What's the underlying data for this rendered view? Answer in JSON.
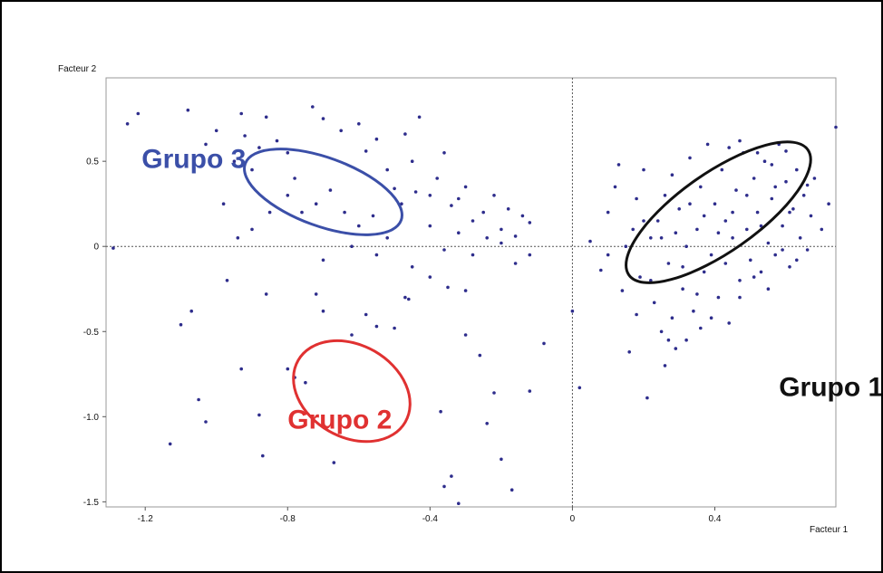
{
  "chart_data": {
    "type": "scatter",
    "title": "",
    "xlabel": "Facteur 1",
    "ylabel": "Facteur 2",
    "xlim": [
      -1.31,
      0.74
    ],
    "ylim": [
      -1.53,
      0.99
    ],
    "x_ticks": [
      -1.2,
      -0.8,
      -0.4,
      0,
      0.4
    ],
    "x_tick_labels": [
      "-1.2",
      "-0.8",
      "-0.4",
      "0",
      "0.4"
    ],
    "y_ticks": [
      0.5,
      0,
      -0.5,
      -1.0,
      -1.5
    ],
    "y_tick_labels": [
      "0.5",
      "0",
      "-0.5",
      "-1.0",
      "-1.5"
    ],
    "grid": false,
    "reference_lines": {
      "x": 0,
      "y": 0,
      "style": "dotted"
    },
    "point_color": "#2e2d8c",
    "groups": [
      {
        "label": "Grupo 1",
        "color": "#111111",
        "center": [
          0.41,
          0.2
        ],
        "radii": [
          0.83,
          0.3
        ],
        "angle_deg": 35,
        "label_pos": [
          0.58,
          -0.88
        ]
      },
      {
        "label": "Grupo 2",
        "color": "#e03131",
        "center": [
          -0.62,
          -0.85
        ],
        "radii": [
          0.47,
          0.35
        ],
        "angle_deg": -30,
        "label_pos": [
          -0.8,
          -1.07
        ]
      },
      {
        "label": "Grupo 3",
        "color": "#3b4fa8",
        "center": [
          -0.7,
          0.32
        ],
        "radii": [
          0.63,
          0.26
        ],
        "angle_deg": -20,
        "label_pos": [
          -1.21,
          0.46
        ]
      }
    ],
    "points": [
      [
        -1.29,
        -0.01
      ],
      [
        -1.25,
        0.72
      ],
      [
        -1.22,
        0.78
      ],
      [
        -1.08,
        0.8
      ],
      [
        -1.03,
        0.6
      ],
      [
        -1.0,
        0.68
      ],
      [
        -0.95,
        0.5
      ],
      [
        -0.93,
        0.78
      ],
      [
        -0.92,
        0.65
      ],
      [
        -0.9,
        0.45
      ],
      [
        -0.88,
        0.58
      ],
      [
        -0.86,
        0.76
      ],
      [
        -0.83,
        0.62
      ],
      [
        -0.8,
        0.55
      ],
      [
        -0.78,
        0.4
      ],
      [
        -0.73,
        0.82
      ],
      [
        -0.7,
        0.75
      ],
      [
        -0.65,
        0.68
      ],
      [
        -0.6,
        0.72
      ],
      [
        -0.58,
        0.56
      ],
      [
        -0.55,
        0.63
      ],
      [
        -0.52,
        0.45
      ],
      [
        -0.5,
        0.34
      ],
      [
        -0.47,
        0.66
      ],
      [
        -0.45,
        0.5
      ],
      [
        -0.43,
        0.76
      ],
      [
        -0.4,
        0.3
      ],
      [
        -0.38,
        0.4
      ],
      [
        -0.36,
        0.55
      ],
      [
        -0.34,
        0.24
      ],
      [
        -0.32,
        0.28
      ],
      [
        -0.3,
        0.35
      ],
      [
        -0.28,
        0.15
      ],
      [
        -0.25,
        0.2
      ],
      [
        -0.22,
        0.3
      ],
      [
        -0.2,
        0.1
      ],
      [
        -0.18,
        0.22
      ],
      [
        -0.16,
        0.06
      ],
      [
        -0.14,
        0.18
      ],
      [
        -0.12,
        0.14
      ],
      [
        -0.98,
        0.25
      ],
      [
        -0.94,
        0.05
      ],
      [
        -0.9,
        0.1
      ],
      [
        -0.85,
        0.2
      ],
      [
        -0.8,
        0.3
      ],
      [
        -0.76,
        0.2
      ],
      [
        -0.72,
        0.25
      ],
      [
        -0.68,
        0.33
      ],
      [
        -0.64,
        0.2
      ],
      [
        -0.6,
        0.12
      ],
      [
        -0.56,
        0.18
      ],
      [
        -0.52,
        0.05
      ],
      [
        -0.48,
        0.25
      ],
      [
        -0.44,
        0.32
      ],
      [
        -0.4,
        0.12
      ],
      [
        -0.36,
        -0.02
      ],
      [
        -0.32,
        0.08
      ],
      [
        -0.28,
        -0.05
      ],
      [
        -0.24,
        0.05
      ],
      [
        -0.2,
        0.02
      ],
      [
        -0.16,
        -0.1
      ],
      [
        -0.12,
        -0.05
      ],
      [
        -0.55,
        -0.05
      ],
      [
        -0.62,
        0.0
      ],
      [
        -0.7,
        -0.08
      ],
      [
        -0.45,
        -0.12
      ],
      [
        -0.4,
        -0.18
      ],
      [
        -0.35,
        -0.24
      ],
      [
        -0.3,
        -0.26
      ],
      [
        -0.47,
        -0.3
      ],
      [
        -1.13,
        -1.16
      ],
      [
        -1.1,
        -0.46
      ],
      [
        -1.07,
        -0.38
      ],
      [
        -1.05,
        -0.9
      ],
      [
        -1.03,
        -1.03
      ],
      [
        -0.97,
        -0.2
      ],
      [
        -0.93,
        -0.72
      ],
      [
        -0.88,
        -0.99
      ],
      [
        -0.87,
        -1.23
      ],
      [
        -0.86,
        -0.28
      ],
      [
        -0.8,
        -0.72
      ],
      [
        -0.78,
        -0.77
      ],
      [
        -0.75,
        -0.8
      ],
      [
        -0.72,
        -0.28
      ],
      [
        -0.7,
        -0.38
      ],
      [
        -0.67,
        -1.27
      ],
      [
        -0.62,
        -0.52
      ],
      [
        -0.58,
        -0.4
      ],
      [
        -0.55,
        -0.47
      ],
      [
        -0.5,
        -0.48
      ],
      [
        -0.46,
        -0.31
      ],
      [
        -0.37,
        -0.97
      ],
      [
        -0.36,
        -1.41
      ],
      [
        -0.34,
        -1.35
      ],
      [
        -0.32,
        -1.51
      ],
      [
        -0.3,
        -0.52
      ],
      [
        -0.26,
        -0.64
      ],
      [
        -0.24,
        -1.04
      ],
      [
        -0.22,
        -0.86
      ],
      [
        -0.2,
        -1.25
      ],
      [
        -0.17,
        -1.43
      ],
      [
        -0.12,
        -0.85
      ],
      [
        -0.08,
        -0.57
      ],
      [
        0.0,
        -0.38
      ],
      [
        0.02,
        -0.83
      ],
      [
        0.05,
        0.03
      ],
      [
        0.08,
        -0.14
      ],
      [
        0.1,
        0.2
      ],
      [
        0.12,
        0.35
      ],
      [
        0.14,
        -0.26
      ],
      [
        0.16,
        -0.62
      ],
      [
        0.17,
        0.1
      ],
      [
        0.18,
        0.28
      ],
      [
        0.19,
        -0.18
      ],
      [
        0.2,
        0.45
      ],
      [
        0.21,
        -0.89
      ],
      [
        0.22,
        0.05
      ],
      [
        0.23,
        -0.33
      ],
      [
        0.24,
        0.15
      ],
      [
        0.25,
        -0.5
      ],
      [
        0.26,
        0.3
      ],
      [
        0.27,
        -0.1
      ],
      [
        0.28,
        0.42
      ],
      [
        0.28,
        -0.42
      ],
      [
        0.29,
        -0.6
      ],
      [
        0.3,
        0.22
      ],
      [
        0.31,
        -0.25
      ],
      [
        0.32,
        0.0
      ],
      [
        0.33,
        0.52
      ],
      [
        0.34,
        -0.38
      ],
      [
        0.35,
        0.1
      ],
      [
        0.36,
        0.35
      ],
      [
        0.37,
        -0.15
      ],
      [
        0.38,
        0.6
      ],
      [
        0.39,
        -0.05
      ],
      [
        0.4,
        0.25
      ],
      [
        0.41,
        -0.3
      ],
      [
        0.42,
        0.45
      ],
      [
        0.43,
        0.15
      ],
      [
        0.44,
        -0.45
      ],
      [
        0.45,
        0.05
      ],
      [
        0.46,
        0.33
      ],
      [
        0.47,
        -0.2
      ],
      [
        0.48,
        0.55
      ],
      [
        0.49,
        0.1
      ],
      [
        0.5,
        -0.08
      ],
      [
        0.51,
        0.4
      ],
      [
        0.52,
        0.2
      ],
      [
        0.53,
        -0.15
      ],
      [
        0.54,
        0.5
      ],
      [
        0.55,
        0.02
      ],
      [
        0.56,
        0.28
      ],
      [
        0.57,
        -0.05
      ],
      [
        0.58,
        0.6
      ],
      [
        0.59,
        0.12
      ],
      [
        0.6,
        0.38
      ],
      [
        0.61,
        -0.12
      ],
      [
        0.62,
        0.22
      ],
      [
        0.63,
        0.45
      ],
      [
        0.64,
        0.05
      ],
      [
        0.65,
        0.3
      ],
      [
        0.66,
        -0.02
      ],
      [
        0.67,
        0.18
      ],
      [
        0.68,
        0.4
      ],
      [
        0.7,
        0.1
      ],
      [
        0.72,
        0.25
      ],
      [
        0.74,
        0.7
      ],
      [
        0.1,
        -0.05
      ],
      [
        0.13,
        0.48
      ],
      [
        0.15,
        0.0
      ],
      [
        0.18,
        -0.4
      ],
      [
        0.2,
        0.15
      ],
      [
        0.22,
        -0.2
      ],
      [
        0.25,
        0.05
      ],
      [
        0.27,
        -0.55
      ],
      [
        0.29,
        0.08
      ],
      [
        0.31,
        -0.12
      ],
      [
        0.33,
        0.25
      ],
      [
        0.35,
        -0.28
      ],
      [
        0.37,
        0.18
      ],
      [
        0.39,
        -0.42
      ],
      [
        0.41,
        0.08
      ],
      [
        0.43,
        -0.1
      ],
      [
        0.45,
        0.2
      ],
      [
        0.47,
        -0.3
      ],
      [
        0.49,
        0.3
      ],
      [
        0.51,
        -0.18
      ],
      [
        0.53,
        0.12
      ],
      [
        0.55,
        -0.25
      ],
      [
        0.57,
        0.35
      ],
      [
        0.59,
        -0.02
      ],
      [
        0.61,
        0.2
      ],
      [
        0.63,
        -0.08
      ],
      [
        0.26,
        -0.7
      ],
      [
        0.32,
        -0.55
      ],
      [
        0.36,
        -0.48
      ],
      [
        0.44,
        0.58
      ],
      [
        0.47,
        0.62
      ],
      [
        0.52,
        0.55
      ],
      [
        0.56,
        0.48
      ],
      [
        0.6,
        0.56
      ],
      [
        0.66,
        0.36
      ]
    ]
  }
}
